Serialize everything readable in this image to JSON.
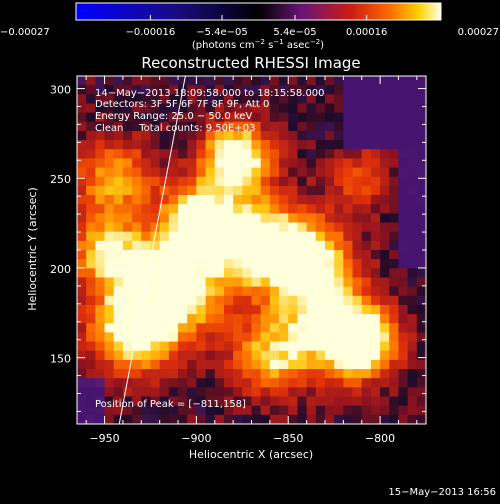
{
  "chart_data": {
    "type": "heatmap",
    "title": "Reconstructed RHESSI Image",
    "xlabel": "Heliocentric X (arcsec)",
    "ylabel": "Heliocentric Y (arcsec)",
    "xlim": [
      -965,
      -775
    ],
    "ylim": [
      113,
      307
    ],
    "x_ticks": [
      -950,
      -900,
      -850,
      -800
    ],
    "x_tick_labels": [
      "−950",
      "−900",
      "−850",
      "−800"
    ],
    "y_ticks": [
      150,
      200,
      250,
      300
    ],
    "y_tick_labels": [
      "150",
      "200",
      "250",
      "300"
    ],
    "colorbar": {
      "ticks": [
        -0.00027,
        -0.00016,
        -5.4e-05,
        5.4e-05,
        0.00016,
        0.00027
      ],
      "tick_labels": [
        "−0.00027",
        "−0.00016",
        "−5.4e−05",
        "5.4e−05",
        "0.00016",
        "0.00027"
      ],
      "range": [
        -0.00027,
        0.00027
      ],
      "units_prefix": "(photons cm",
      "units_exp1": "−2",
      "units_mid": " s",
      "units_exp2": "−1",
      "units_mid2": " asec",
      "units_exp3": "−2",
      "units_suffix": ")",
      "colormap": [
        "#0000ff",
        "#000000",
        "#5a1070",
        "#b01818",
        "#ff5a00",
        "#ffd000",
        "#ffffe0"
      ]
    },
    "annotations": [
      "14−May−2013 18:09:58.000 to 18:15:58.000",
      "Detectors: 3F 5F 6F 7F 8F 9F, Att 0",
      "Energy Range: 25.0 − 50.0 keV",
      "Clean     Total counts: 9.50E+03"
    ],
    "peak_label": "Position of Peak = [−811,158]",
    "peak": [
      -811,
      158
    ],
    "limb_line": {
      "start": [
        -942,
        113
      ],
      "end": [
        -906,
        307
      ]
    },
    "grid": false
  },
  "footer": {
    "date": "15−May−2013 16:56"
  }
}
